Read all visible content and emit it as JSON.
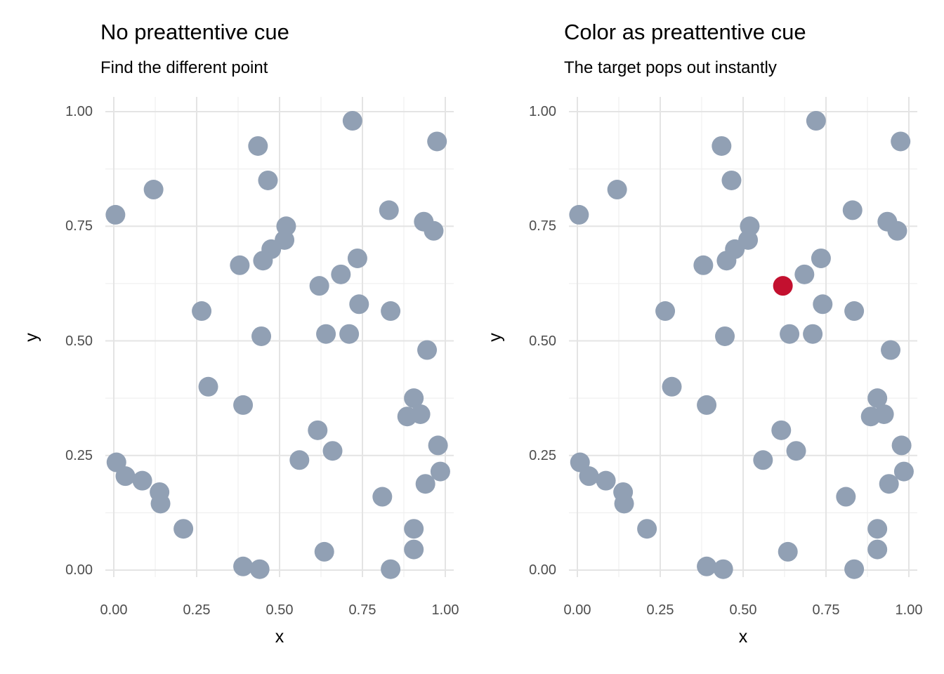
{
  "figure": {
    "background": "#FFFFFF",
    "text_colors": {
      "title": "#000000",
      "subtitle": "#000000",
      "tick_label": "#4D4D4D",
      "axis_title": "#000000"
    }
  },
  "chart_data": [
    {
      "type": "scatter",
      "title": "No preattentive cue",
      "subtitle": "Find the different point",
      "xlabel": "x",
      "ylabel": "y",
      "xlim": [
        0,
        1
      ],
      "ylim": [
        0,
        1
      ],
      "x_tick_values": [
        0,
        0.25,
        0.5,
        0.75,
        1
      ],
      "y_tick_values": [
        0,
        0.25,
        0.5,
        0.75,
        1
      ],
      "x_tick_labels": [
        "0.00",
        "0.25",
        "0.50",
        "0.75",
        "1.00"
      ],
      "y_tick_labels": [
        "0.00",
        "0.25",
        "0.50",
        "0.75",
        "1.00"
      ],
      "grid": {
        "major_color": "#E4E4E4",
        "minor_color": "#F0F0F0",
        "minor_values": [
          0.125,
          0.375,
          0.625,
          0.875
        ]
      },
      "legend": "none",
      "point_color": "#91A0B4",
      "point_radius_px": 14,
      "target_index": null,
      "target_color": null,
      "points": [
        [
          0.72,
          0.98
        ],
        [
          0.435,
          0.925
        ],
        [
          0.975,
          0.935
        ],
        [
          0.465,
          0.85
        ],
        [
          0.12,
          0.83
        ],
        [
          0.005,
          0.775
        ],
        [
          0.83,
          0.785
        ],
        [
          0.935,
          0.76
        ],
        [
          0.965,
          0.74
        ],
        [
          0.52,
          0.75
        ],
        [
          0.515,
          0.72
        ],
        [
          0.475,
          0.7
        ],
        [
          0.45,
          0.675
        ],
        [
          0.38,
          0.665
        ],
        [
          0.735,
          0.68
        ],
        [
          0.685,
          0.645
        ],
        [
          0.62,
          0.62
        ],
        [
          0.74,
          0.58
        ],
        [
          0.265,
          0.565
        ],
        [
          0.835,
          0.565
        ],
        [
          0.445,
          0.51
        ],
        [
          0.64,
          0.515
        ],
        [
          0.71,
          0.515
        ],
        [
          0.945,
          0.48
        ],
        [
          0.285,
          0.4
        ],
        [
          0.39,
          0.36
        ],
        [
          0.905,
          0.375
        ],
        [
          0.885,
          0.335
        ],
        [
          0.925,
          0.34
        ],
        [
          0.615,
          0.305
        ],
        [
          0.56,
          0.24
        ],
        [
          0.66,
          0.26
        ],
        [
          0.978,
          0.272
        ],
        [
          0.985,
          0.215
        ],
        [
          0.008,
          0.235
        ],
        [
          0.035,
          0.205
        ],
        [
          0.086,
          0.195
        ],
        [
          0.138,
          0.17
        ],
        [
          0.141,
          0.145
        ],
        [
          0.81,
          0.16
        ],
        [
          0.94,
          0.188
        ],
        [
          0.21,
          0.09
        ],
        [
          0.39,
          0.008
        ],
        [
          0.44,
          0.002
        ],
        [
          0.635,
          0.04
        ],
        [
          0.905,
          0.09
        ],
        [
          0.905,
          0.045
        ],
        [
          0.835,
          0.002
        ]
      ]
    },
    {
      "type": "scatter",
      "title": "Color as preattentive cue",
      "subtitle": "The target pops out instantly",
      "xlabel": "x",
      "ylabel": "y",
      "xlim": [
        0,
        1
      ],
      "ylim": [
        0,
        1
      ],
      "x_tick_values": [
        0,
        0.25,
        0.5,
        0.75,
        1
      ],
      "y_tick_values": [
        0,
        0.25,
        0.5,
        0.75,
        1
      ],
      "x_tick_labels": [
        "0.00",
        "0.25",
        "0.50",
        "0.75",
        "1.00"
      ],
      "y_tick_labels": [
        "0.00",
        "0.25",
        "0.50",
        "0.75",
        "1.00"
      ],
      "grid": {
        "major_color": "#E4E4E4",
        "minor_color": "#F0F0F0",
        "minor_values": [
          0.125,
          0.375,
          0.625,
          0.875
        ]
      },
      "legend": "none",
      "point_color": "#91A0B4",
      "point_radius_px": 14,
      "target_index": 16,
      "target_color": "#C3102F",
      "points": [
        [
          0.72,
          0.98
        ],
        [
          0.435,
          0.925
        ],
        [
          0.975,
          0.935
        ],
        [
          0.465,
          0.85
        ],
        [
          0.12,
          0.83
        ],
        [
          0.005,
          0.775
        ],
        [
          0.83,
          0.785
        ],
        [
          0.935,
          0.76
        ],
        [
          0.965,
          0.74
        ],
        [
          0.52,
          0.75
        ],
        [
          0.515,
          0.72
        ],
        [
          0.475,
          0.7
        ],
        [
          0.45,
          0.675
        ],
        [
          0.38,
          0.665
        ],
        [
          0.735,
          0.68
        ],
        [
          0.685,
          0.645
        ],
        [
          0.62,
          0.62
        ],
        [
          0.74,
          0.58
        ],
        [
          0.265,
          0.565
        ],
        [
          0.835,
          0.565
        ],
        [
          0.445,
          0.51
        ],
        [
          0.64,
          0.515
        ],
        [
          0.71,
          0.515
        ],
        [
          0.945,
          0.48
        ],
        [
          0.285,
          0.4
        ],
        [
          0.39,
          0.36
        ],
        [
          0.905,
          0.375
        ],
        [
          0.885,
          0.335
        ],
        [
          0.925,
          0.34
        ],
        [
          0.615,
          0.305
        ],
        [
          0.56,
          0.24
        ],
        [
          0.66,
          0.26
        ],
        [
          0.978,
          0.272
        ],
        [
          0.985,
          0.215
        ],
        [
          0.008,
          0.235
        ],
        [
          0.035,
          0.205
        ],
        [
          0.086,
          0.195
        ],
        [
          0.138,
          0.17
        ],
        [
          0.141,
          0.145
        ],
        [
          0.81,
          0.16
        ],
        [
          0.94,
          0.188
        ],
        [
          0.21,
          0.09
        ],
        [
          0.39,
          0.008
        ],
        [
          0.44,
          0.002
        ],
        [
          0.635,
          0.04
        ],
        [
          0.905,
          0.09
        ],
        [
          0.905,
          0.045
        ],
        [
          0.835,
          0.002
        ]
      ]
    }
  ]
}
